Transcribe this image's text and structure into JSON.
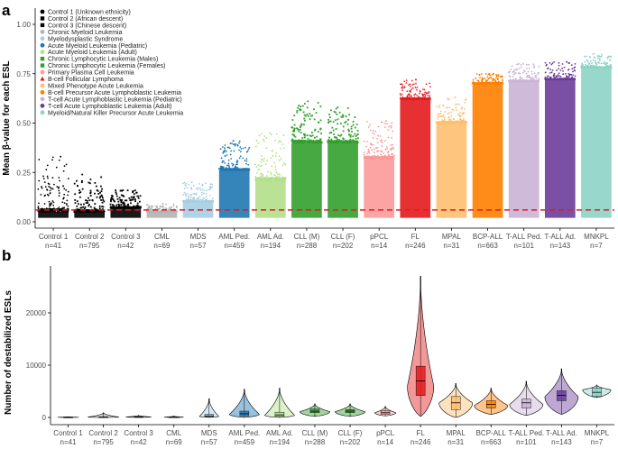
{
  "panels": {
    "a": {
      "letter": "a"
    },
    "b": {
      "letter": "b"
    }
  },
  "chart_data": [
    {
      "id": "a",
      "type": "scatter",
      "title": "",
      "xlabel": "",
      "ylabel": "Mean β-value for each ESL",
      "ylim": [
        0,
        1.0
      ],
      "yticks": [
        "0.00",
        "0.25",
        "0.50",
        "0.75",
        "1.00"
      ],
      "threshold": 0.06,
      "categories": [
        "Control 1",
        "Control 2",
        "Control 3",
        "CML",
        "MDS",
        "AML Ped.",
        "AML Ad.",
        "CLL (M)",
        "CLL (F)",
        "pPCL",
        "FL",
        "MPAL",
        "BCP-ALL",
        "T-ALL Ped.",
        "T-ALL Ad.",
        "MNKPL"
      ],
      "counts": [
        "n=41",
        "n=795",
        "n=42",
        "n=69",
        "n=57",
        "n=459",
        "n=194",
        "n=288",
        "n=202",
        "n=14",
        "n=246",
        "n=31",
        "n=663",
        "n=101",
        "n=143",
        "n=7"
      ],
      "colors": [
        "#000000",
        "#000000",
        "#000000",
        "#b3b3b3",
        "#a6cee3",
        "#1f78b4",
        "#b2df8a",
        "#33a02c",
        "#33a02c",
        "#fb9a99",
        "#e31a1c",
        "#fdbf6f",
        "#ff7f00",
        "#cab2d6",
        "#6a3d9a",
        "#8dd3c7"
      ],
      "max_values": [
        0.33,
        0.24,
        0.16,
        0.09,
        0.2,
        0.41,
        0.45,
        0.61,
        0.58,
        0.51,
        0.72,
        0.63,
        0.75,
        0.8,
        0.81,
        0.85
      ],
      "dense_top": [
        0.05,
        0.05,
        0.07,
        0.05,
        0.1,
        0.26,
        0.21,
        0.4,
        0.4,
        0.32,
        0.62,
        0.5,
        0.7,
        0.71,
        0.72,
        0.78
      ],
      "legend": [
        {
          "label": "Control 1 (Unknown ethnicity)",
          "shape": "circle",
          "color": "#000000"
        },
        {
          "label": "Control 2 (African descent)",
          "shape": "square",
          "color": "#000000"
        },
        {
          "label": "Control 3 (Chinese descent)",
          "shape": "square",
          "color": "#000000"
        },
        {
          "label": "Chronic Myeloid Leukemia",
          "shape": "circle",
          "color": "#b3b3b3"
        },
        {
          "label": "Myelodysplastic Syndrome",
          "shape": "circle",
          "color": "#a6cee3"
        },
        {
          "label": "Acute Myeloid Leukemia (Pediatric)",
          "shape": "circle",
          "color": "#1f78b4"
        },
        {
          "label": "Acute Myeloid Leukemia (Adult)",
          "shape": "circle",
          "color": "#b2df8a"
        },
        {
          "label": "Chronic Lymphocytic Leukemia (Males)",
          "shape": "square",
          "color": "#33a02c"
        },
        {
          "label": "Chronic Lymphocytic Leukemia (Females)",
          "shape": "square",
          "color": "#33a02c"
        },
        {
          "label": "Primary Plasma Cell Leukemia",
          "shape": "circle",
          "color": "#fb9a99"
        },
        {
          "label": "B-cell Follicular Lymphoma",
          "shape": "triangle",
          "color": "#e31a1c"
        },
        {
          "label": "Mixed Phenotype Acute Leukemia",
          "shape": "circle",
          "color": "#fdbf6f"
        },
        {
          "label": "B-cell Precursor Acute Lymphoblastic Leukemia",
          "shape": "circle",
          "color": "#ff7f00"
        },
        {
          "label": "T-cell Acute Lymphoblastic Leukemia (Pediatric)",
          "shape": "circle",
          "color": "#cab2d6"
        },
        {
          "label": "T-cell Acute Lymphoblastic Leukemia (Adult)",
          "shape": "circle",
          "color": "#6a3d9a"
        },
        {
          "label": "Myeloid/Natural Killer Precursor Acute Leukemia",
          "shape": "circle",
          "color": "#8dd3c7"
        }
      ]
    },
    {
      "id": "b",
      "type": "violin",
      "title": "",
      "xlabel": "",
      "ylabel": "Number of destabilized ESLs",
      "ylim": [
        -500,
        28500
      ],
      "yticks": [
        "0",
        "10000",
        "20000"
      ],
      "ytick_values": [
        0,
        10000,
        20000
      ],
      "categories": [
        "Control 1",
        "Control 2",
        "Control 3",
        "CML",
        "MDS",
        "AML Ped.",
        "AML Ad.",
        "CLL (M)",
        "CLL (F)",
        "pPCL",
        "FL",
        "MPAL",
        "BCP-ALL",
        "T-ALL Ped.",
        "T-ALL Ad.",
        "MNKPL"
      ],
      "counts": [
        "n=41",
        "n=795",
        "n=42",
        "n=69",
        "n=57",
        "n=459",
        "n=194",
        "n=288",
        "n=202",
        "n=14",
        "n=246",
        "n=31",
        "n=663",
        "n=101",
        "n=143",
        "n=7"
      ],
      "colors": [
        "#000000",
        "#000000",
        "#000000",
        "#b3b3b3",
        "#a6cee3",
        "#1f78b4",
        "#b2df8a",
        "#33a02c",
        "#33a02c",
        "#fb9a99",
        "#e31a1c",
        "#fdbf6f",
        "#ff7f00",
        "#cab2d6",
        "#6a3d9a",
        "#8dd3c7"
      ],
      "min": [
        0,
        0,
        0,
        0,
        0,
        0,
        0,
        200,
        200,
        300,
        200,
        0,
        600,
        400,
        600,
        3800
      ],
      "q1": [
        20,
        30,
        50,
        30,
        150,
        300,
        200,
        900,
        900,
        600,
        4200,
        1500,
        1800,
        1800,
        3200,
        4000
      ],
      "median": [
        40,
        50,
        100,
        60,
        300,
        700,
        500,
        1200,
        1200,
        900,
        7000,
        2800,
        2500,
        2800,
        4200,
        4800
      ],
      "q3": [
        60,
        100,
        150,
        90,
        600,
        1200,
        1000,
        1600,
        1500,
        1300,
        9800,
        4000,
        3200,
        3500,
        5100,
        5600
      ],
      "max": [
        120,
        900,
        400,
        250,
        3600,
        5400,
        5600,
        2600,
        2600,
        2100,
        27000,
        6500,
        5600,
        6900,
        9300,
        6200
      ],
      "mode": [
        40,
        50,
        100,
        60,
        200,
        600,
        400,
        1100,
        1100,
        900,
        6000,
        2800,
        2300,
        2500,
        4000,
        5300
      ],
      "max_width": [
        0.6,
        0.9,
        0.7,
        0.55,
        0.55,
        0.85,
        0.85,
        0.85,
        0.85,
        0.6,
        0.75,
        0.95,
        0.95,
        0.95,
        0.95,
        0.8
      ]
    }
  ]
}
